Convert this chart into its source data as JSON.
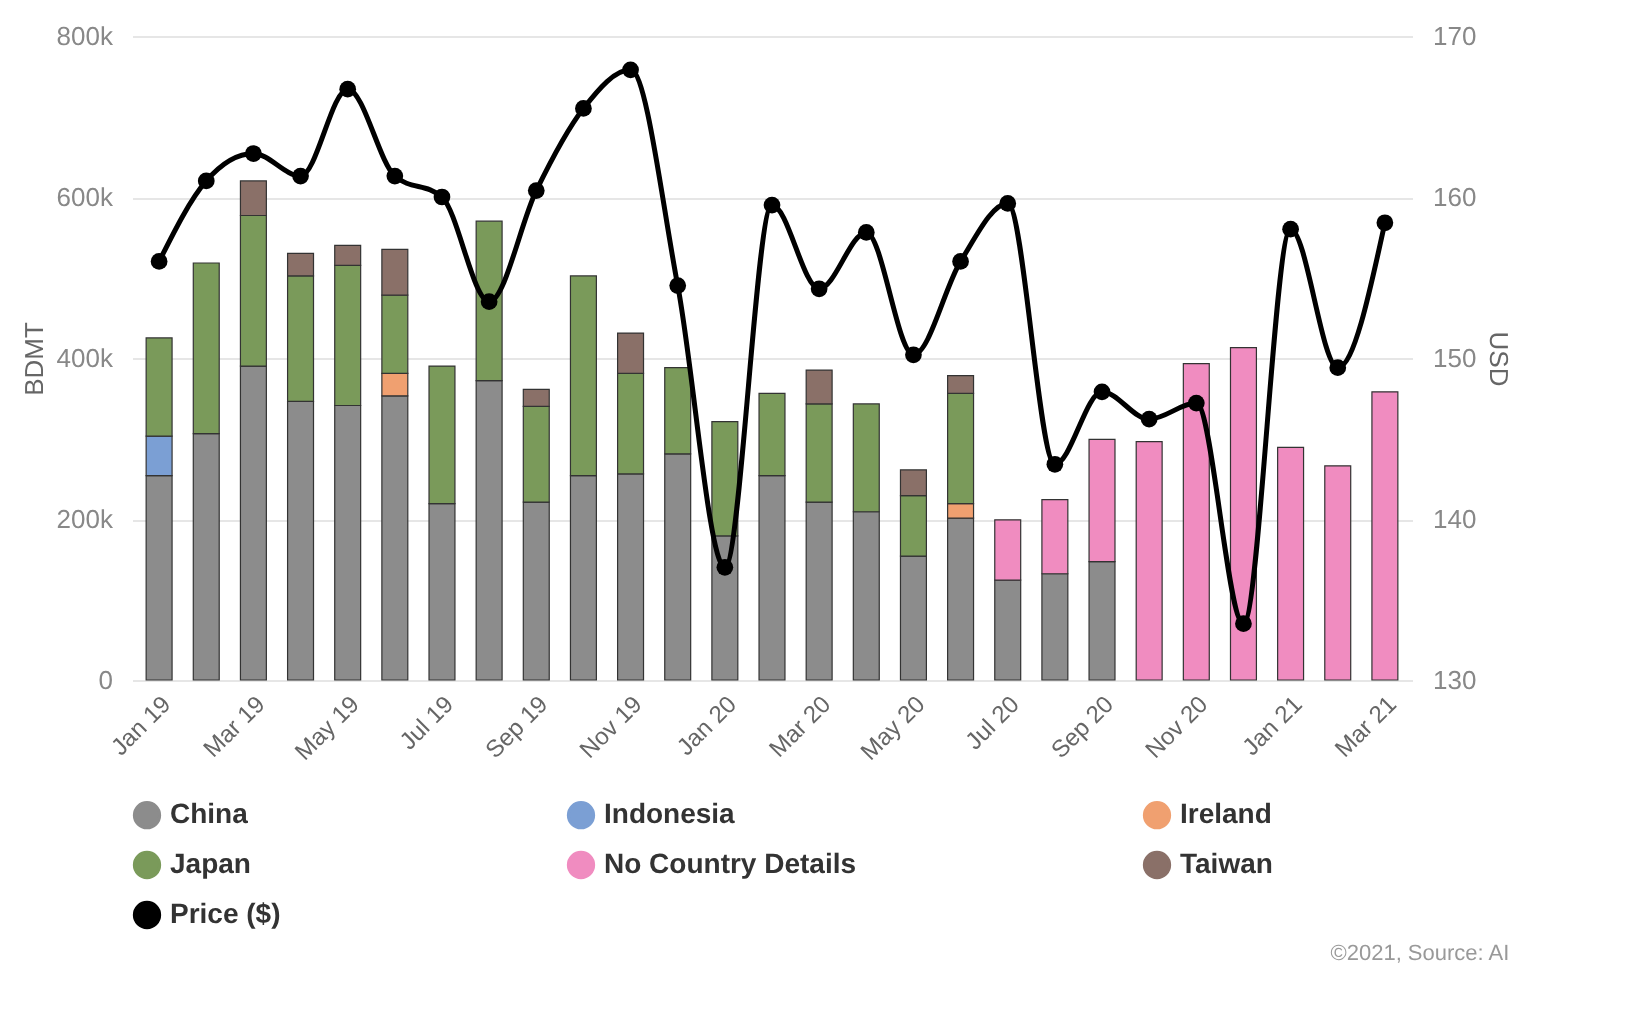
{
  "chart_data": {
    "type": "bar",
    "stacked": true,
    "ylabel": "BDMT",
    "y2label": "USD",
    "categories": [
      "Jan 19",
      null,
      "Mar 19",
      null,
      "May 19",
      null,
      "Jul 19",
      null,
      "Sep 19",
      null,
      "Nov 19",
      null,
      "Jan 20",
      null,
      "Mar 20",
      null,
      "May 20",
      null,
      "Jul 20",
      null,
      "Sep 20",
      null,
      "Nov 20",
      null,
      "Jan 21",
      null,
      "Mar 21"
    ],
    "series": [
      {
        "name": "China",
        "color": "#8c8c8c",
        "values": [
          254000,
          306000,
          390000,
          346000,
          341000,
          353000,
          219000,
          372000,
          221000,
          254000,
          256000,
          281000,
          179000,
          254000,
          221000,
          209000,
          154000,
          201000,
          124000,
          132000,
          147000,
          null,
          null,
          null,
          null,
          null,
          null
        ]
      },
      {
        "name": "Indonesia",
        "color": "#7b9fd4",
        "values": [
          49000,
          null,
          null,
          null,
          null,
          null,
          null,
          null,
          null,
          null,
          null,
          null,
          null,
          null,
          null,
          null,
          null,
          null,
          null,
          null,
          null,
          null,
          null,
          null,
          null,
          null,
          null
        ]
      },
      {
        "name": "Ireland",
        "color": "#f0a070",
        "values": [
          null,
          null,
          null,
          null,
          null,
          28000,
          null,
          null,
          null,
          null,
          null,
          null,
          null,
          null,
          null,
          null,
          null,
          18000,
          null,
          null,
          null,
          null,
          null,
          null,
          null,
          null,
          null
        ]
      },
      {
        "name": "Japan",
        "color": "#7a9a5a",
        "values": [
          122000,
          212000,
          187000,
          156000,
          174000,
          97000,
          171000,
          198000,
          119000,
          248000,
          125000,
          107000,
          142000,
          102000,
          122000,
          134000,
          75000,
          137000,
          null,
          null,
          null,
          null,
          null,
          null,
          null,
          null,
          null
        ]
      },
      {
        "name": "No Country Details",
        "color": "#f08cc0",
        "values": [
          null,
          null,
          null,
          null,
          null,
          null,
          null,
          null,
          null,
          null,
          null,
          null,
          null,
          null,
          null,
          null,
          null,
          null,
          75000,
          92000,
          152000,
          296000,
          393000,
          413000,
          289000,
          266000,
          358000
        ]
      },
      {
        "name": "Taiwan",
        "color": "#8a7068",
        "values": [
          null,
          null,
          43000,
          28000,
          25000,
          57000,
          null,
          null,
          21000,
          null,
          50000,
          null,
          null,
          null,
          42000,
          null,
          32000,
          22000,
          null,
          null,
          null,
          null,
          null,
          null,
          null,
          null,
          null
        ]
      },
      {
        "name": "Price ($)",
        "type": "line",
        "axis": "y2",
        "color": "#000000",
        "values": [
          156,
          161,
          162.7,
          161.3,
          166.7,
          161.3,
          160,
          153.5,
          160.4,
          165.5,
          167.9,
          154.5,
          137,
          159.5,
          154.3,
          157.8,
          150.2,
          156,
          159.6,
          143.4,
          147.9,
          146.2,
          147.2,
          133.5,
          158,
          149.4,
          158.4
        ]
      }
    ],
    "ylim": [
      0,
      800000
    ],
    "yticks": [
      {
        "value": 0,
        "label": "0"
      },
      {
        "value": 200000,
        "label": "200k"
      },
      {
        "value": 400000,
        "label": "400k"
      },
      {
        "value": 600000,
        "label": "600k"
      },
      {
        "value": 800000,
        "label": "800k"
      }
    ],
    "y2lim": [
      130,
      170
    ],
    "y2ticks": [
      130,
      140,
      150,
      160,
      170
    ],
    "grid": "y",
    "legend": "bottom",
    "marker": "circle",
    "line_style": "solid",
    "annotations": [
      "©2021, Source: AI"
    ]
  }
}
